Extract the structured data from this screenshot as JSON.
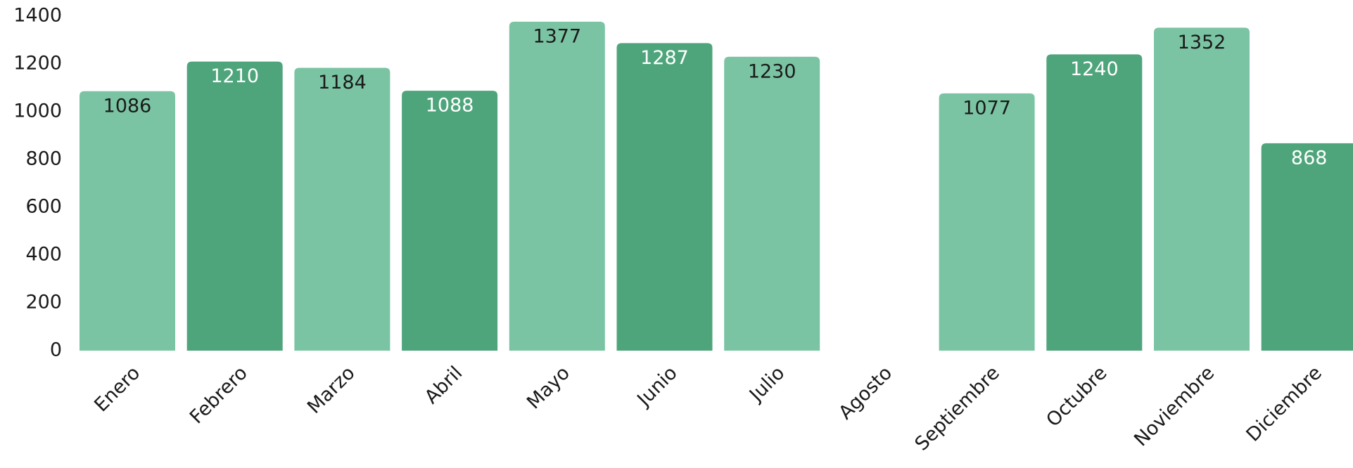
{
  "chart_data": {
    "type": "bar",
    "categories": [
      "Enero",
      "Febrero",
      "Marzo",
      "Abril",
      "Mayo",
      "Junio",
      "Julio",
      "Agosto",
      "Septiembre",
      "Octubre",
      "Noviembre",
      "Diciembre"
    ],
    "values": [
      1086,
      1210,
      1184,
      1088,
      1377,
      1287,
      1230,
      null,
      1077,
      1240,
      1352,
      868
    ],
    "colors": [
      "#7bc4a3",
      "#4fa57b",
      "#7bc4a3",
      "#4fa57b",
      "#7bc4a3",
      "#4fa57b",
      "#7bc4a3",
      "#4fa57b",
      "#7bc4a3",
      "#4fa57b",
      "#7bc4a3",
      "#4fa57b"
    ],
    "ylim": [
      0,
      1400
    ],
    "yticks": [
      0,
      200,
      400,
      600,
      800,
      1000,
      1200,
      1400
    ],
    "grid": false
  }
}
